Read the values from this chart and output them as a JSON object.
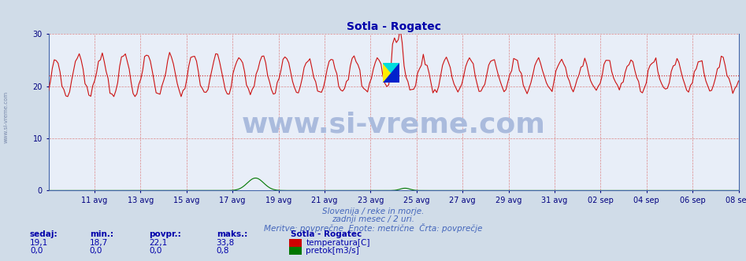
{
  "title": "Sotla - Rogatec",
  "title_color": "#0000aa",
  "title_fontsize": 10,
  "bg_color": "#d0dce8",
  "plot_bg_color": "#e8eef8",
  "grid_v_color": "#dd8888",
  "grid_h_color": "#dd8888",
  "ylim": [
    0,
    30
  ],
  "yticks": [
    0,
    10,
    20,
    30
  ],
  "avg_temp": 22.1,
  "avg_line_color": "#cc2222",
  "temp_line_color": "#cc1111",
  "flow_line_color": "#007700",
  "tick_color": "#000080",
  "footnote1": "Slovenija / reke in morje.",
  "footnote2": "zadnji mesec / 2 uri.",
  "footnote3": "Meritve: povprečne  Enote: metrične  Črta: povprečje",
  "footnote_color": "#4466bb",
  "watermark": "www.si-vreme.com",
  "watermark_color": "#aabbdd",
  "watermark_fontsize": 26,
  "label_sedaj": "sedaj:",
  "label_min": "min.:",
  "label_povpr": "povpr.:",
  "label_maks": "maks.:",
  "label_color": "#0000aa",
  "stat_color": "#0000aa",
  "station_label": "Sotla - Rogatec",
  "temp_sedaj": "19,1",
  "temp_min": "18,7",
  "temp_povpr": "22,1",
  "temp_maks": "33,8",
  "flow_sedaj": "0,0",
  "flow_min": "0,0",
  "flow_povpr": "0,0",
  "flow_maks": "0,8",
  "leg_temp": "temperatura[C]",
  "leg_flow": "pretok[m3/s]",
  "x_tick_labels": [
    "11 avg",
    "13 avg",
    "15 avg",
    "17 avg",
    "19 avg",
    "21 avg",
    "23 avg",
    "25 avg",
    "27 avg",
    "29 avg",
    "31 avg",
    "02 sep",
    "04 sep",
    "06 sep",
    "08 sep"
  ],
  "x_tick_positions": [
    2,
    4,
    6,
    8,
    10,
    12,
    14,
    16,
    18,
    20,
    22,
    24,
    26,
    28,
    30
  ],
  "xlim": [
    0,
    30
  ],
  "sidebar_text": "www.si-vreme.com",
  "sidebar_color": "#7788aa",
  "logo_yellow": "#ffee00",
  "logo_cyan": "#00dddd",
  "logo_blue": "#0022cc",
  "spine_color": "#4466aa"
}
